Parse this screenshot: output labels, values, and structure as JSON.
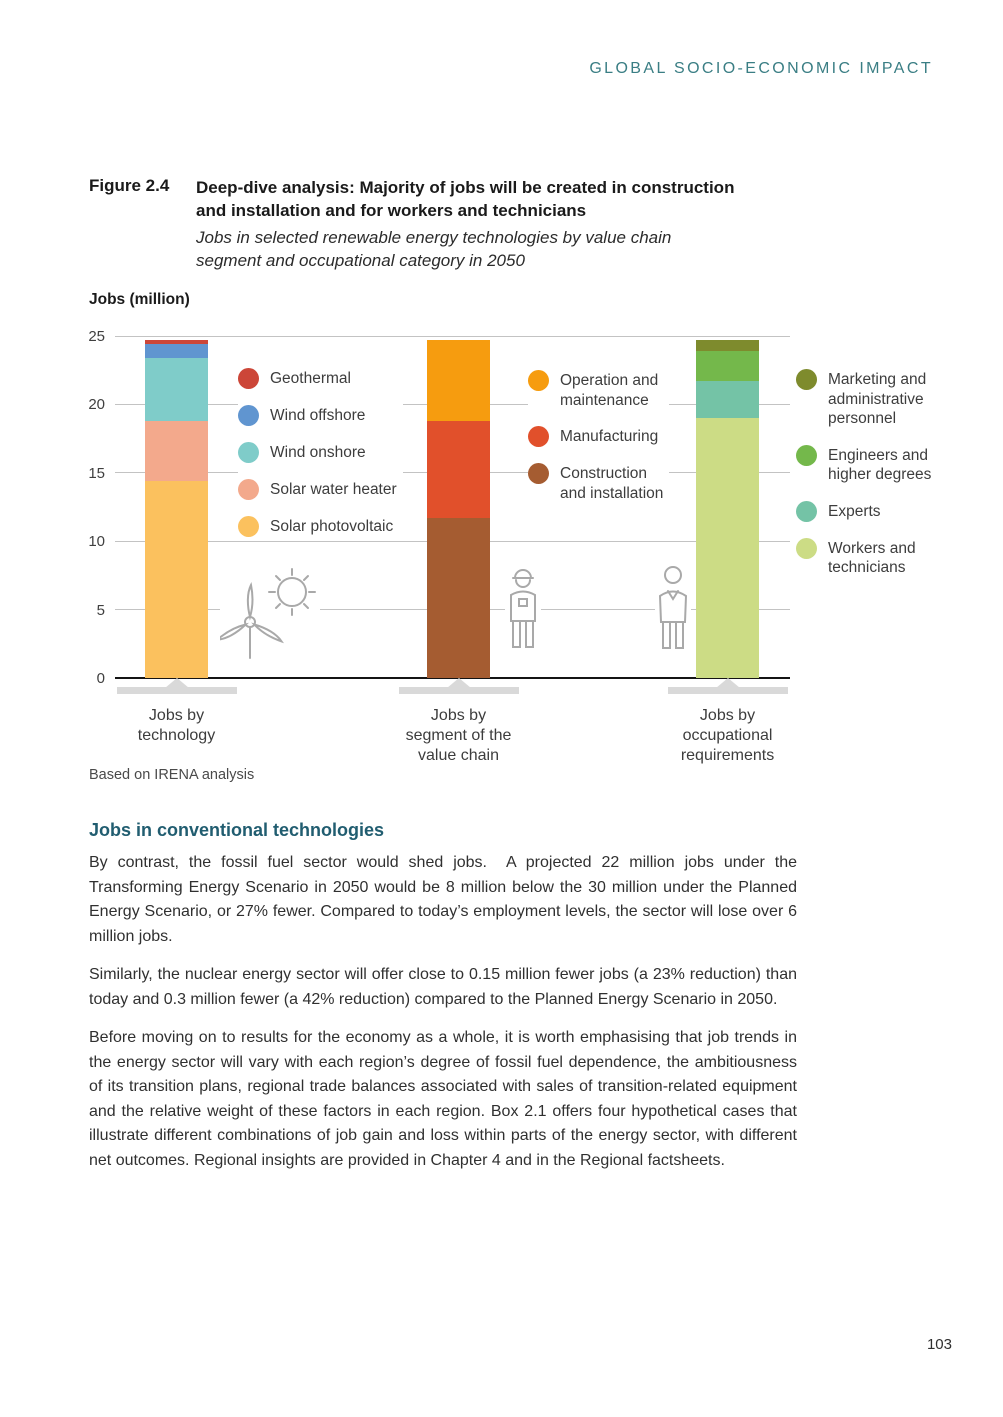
{
  "header": {
    "title": "GLOBAL SOCIO-ECONOMIC IMPACT"
  },
  "figure": {
    "label": "Figure 2.4",
    "title": "Deep-dive analysis: Majority of jobs will be created in construction\nand installation and for workers and technicians",
    "subtitle": "Jobs in selected renewable energy technologies by value chain\nsegment and occupational category in 2050",
    "source": "Based on IRENA analysis"
  },
  "chart_data": {
    "type": "bar",
    "stacked": true,
    "unit": "million jobs",
    "ylabel": "Jobs (million)",
    "ylim": [
      0,
      25
    ],
    "yticks": [
      0,
      5,
      10,
      15,
      20,
      25
    ],
    "total_per_bar": 24.7,
    "grid": true,
    "groups": [
      {
        "label": "Jobs by\ntechnology",
        "segments": [
          {
            "name": "Solar photovoltaic",
            "value": 14.4,
            "color": "#fbc15e"
          },
          {
            "name": "Solar water heater",
            "value": 4.4,
            "color": "#f3a98c"
          },
          {
            "name": "Wind onshore",
            "value": 4.6,
            "color": "#7fccc9"
          },
          {
            "name": "Wind offshore",
            "value": 1.0,
            "color": "#6095d0"
          },
          {
            "name": "Geothermal",
            "value": 0.3,
            "color": "#cc4638"
          }
        ]
      },
      {
        "label": "Jobs by\nsegment of the\nvalue chain",
        "segments": [
          {
            "name": "Construction and installation",
            "value": 11.7,
            "color": "#a55c31"
          },
          {
            "name": "Manufacturing",
            "value": 7.1,
            "color": "#e1502b"
          },
          {
            "name": "Operation and maintenance",
            "value": 5.9,
            "color": "#f69c0f"
          }
        ]
      },
      {
        "label": "Jobs by\noccupational\nrequirements",
        "segments": [
          {
            "name": "Workers and technicians",
            "value": 19.0,
            "color": "#ccdc85"
          },
          {
            "name": "Experts",
            "value": 2.7,
            "color": "#74c3a6"
          },
          {
            "name": "Engineers and higher degrees",
            "value": 2.2,
            "color": "#74b84b"
          },
          {
            "name": "Marketing and administrative personnel",
            "value": 0.8,
            "color": "#7e8b2d"
          }
        ]
      }
    ],
    "legends": [
      {
        "items": [
          {
            "label": "Geothermal",
            "color": "#cc4638"
          },
          {
            "label": "Wind offshore",
            "color": "#6095d0"
          },
          {
            "label": "Wind onshore",
            "color": "#7fccc9"
          },
          {
            "label": "Solar water heater",
            "color": "#f3a98c"
          },
          {
            "label": "Solar photovoltaic",
            "color": "#fbc15e"
          }
        ]
      },
      {
        "items": [
          {
            "label": "Operation and\nmaintenance",
            "color": "#f69c0f"
          },
          {
            "label": "Manufacturing",
            "color": "#e1502b"
          },
          {
            "label": "Construction\nand installation",
            "color": "#a55c31"
          }
        ]
      },
      {
        "items": [
          {
            "label": "Marketing and\nadministrative\npersonnel",
            "color": "#7e8b2d"
          },
          {
            "label": "Engineers and\nhigher degrees",
            "color": "#74b84b"
          },
          {
            "label": "Experts",
            "color": "#74c3a6"
          },
          {
            "label": "Workers and\ntechnicians",
            "color": "#ccdc85"
          }
        ]
      }
    ]
  },
  "section": {
    "heading": "Jobs in conventional technologies",
    "paragraphs": [
      "By contrast, the fossil fuel sector would shed jobs.  A projected 22 million jobs under the Transforming Energy Scenario in 2050 would be 8 million below the 30 million under the Planned Energy Scenario, or 27% fewer. Compared to today’s employment levels, the sector will lose over 6 million jobs.",
      "Similarly, the nuclear energy sector will offer close to 0.15 million fewer jobs (a 23% reduction) than today and 0.3 million fewer (a 42% reduction) compared to the Planned Energy Scenario in 2050.",
      "Before moving on to results for the economy as a whole, it is worth emphasising that job trends in the energy sector will vary with each region’s degree of fossil fuel dependence, the ambitiousness of its transition plans, regional trade balances associated with sales of transition-related equipment and the relative weight of these factors in each region. Box 2.1 offers four hypothetical cases that illustrate different combinations of job gain and loss within parts of the energy sector, with different net outcomes. Regional insights are provided in Chapter 4 and in the Regional factsheets."
    ]
  },
  "page_number": "103",
  "colors": {
    "accent_teal": "#3a7e84",
    "heading_teal": "#215d70"
  }
}
